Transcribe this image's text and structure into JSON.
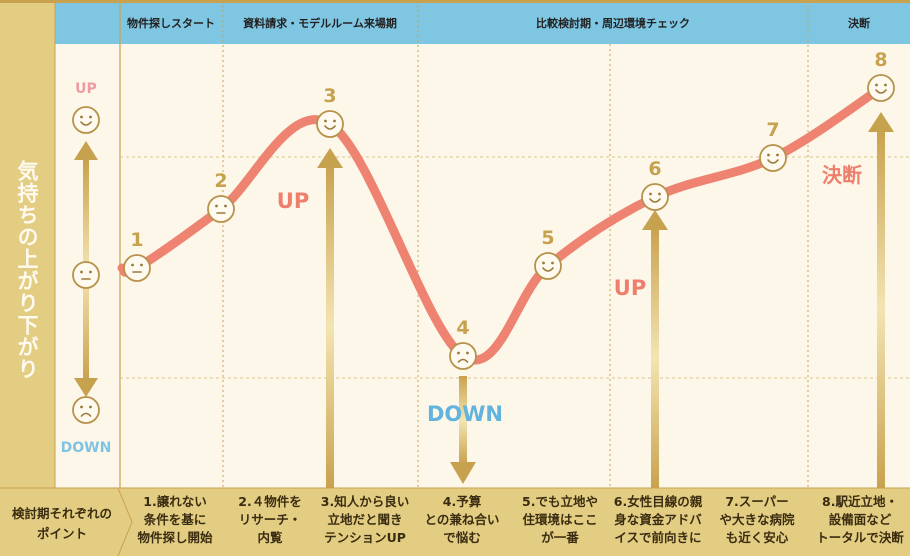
{
  "colors": {
    "gold_band": "#e3cd83",
    "header_blue": "#7fc6e2",
    "canvas": "#fdf7ea",
    "curve": "#ee8371",
    "up_text": "#ee7f6c",
    "down_text": "#62b3dd",
    "number": "#c6a14e",
    "face_stroke": "#b7924a"
  },
  "y_axis": {
    "title": "気持ちの上がり下がり",
    "up_label": "UP",
    "down_label": "DOWN"
  },
  "phases": [
    "物件探しスタート",
    "資料請求・モデルルーム来場期",
    "比較検討期・周辺環境チェック",
    "決断"
  ],
  "points_row_label": [
    "検討期それぞれの",
    "ポイント"
  ],
  "points": [
    {
      "number": "1",
      "expression": "neutral",
      "lines": [
        "1.譲れない",
        "条件を基に",
        "物件探し開始"
      ]
    },
    {
      "number": "2",
      "expression": "neutral",
      "lines": [
        "2.４物件を",
        "リサーチ・",
        "内覧"
      ]
    },
    {
      "number": "3",
      "expression": "smile",
      "lines": [
        "3.知人から良い",
        "立地だと聞き",
        "テンションUP"
      ]
    },
    {
      "number": "4",
      "expression": "sad",
      "lines": [
        "4.予算",
        "との兼ね合い",
        "で悩む"
      ]
    },
    {
      "number": "5",
      "expression": "smile",
      "lines": [
        "5.でも立地や",
        "住環境はここ",
        "が一番"
      ]
    },
    {
      "number": "6",
      "expression": "smile",
      "lines": [
        "6.女性目線の親",
        "身な資金アドバ",
        "イスで前向きに"
      ]
    },
    {
      "number": "7",
      "expression": "smile",
      "lines": [
        "7.スーパー",
        "や大きな病院",
        "も近く安心"
      ]
    },
    {
      "number": "8",
      "expression": "grin",
      "lines": [
        "8.駅近立地・",
        "設備面など",
        "トータルで決断"
      ]
    }
  ],
  "annotations": [
    {
      "text": "UP",
      "kind": "up"
    },
    {
      "text": "DOWN",
      "kind": "down"
    },
    {
      "text": "UP",
      "kind": "up"
    },
    {
      "text": "決断",
      "kind": "up"
    }
  ]
}
